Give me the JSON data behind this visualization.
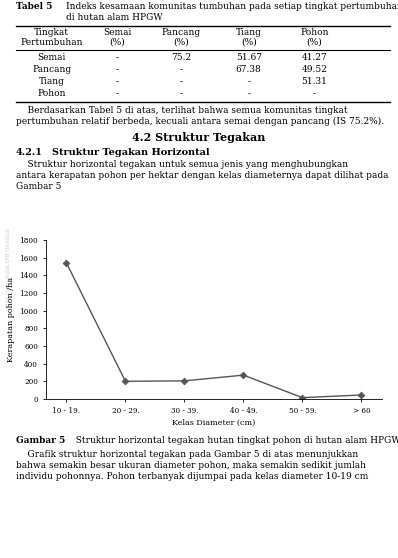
{
  "table_title_bold": "Tabel 5",
  "table_title_text": "Indeks kesamaan komunitas tumbuhan pada setiap tingkat pertumbuhan di hutan alam HPGW",
  "col_headers": [
    "Tingkat\nPertumbuhan",
    "Semai\n(%)",
    "Pancang\n(%)",
    "Tiang\n(%)",
    "Pohon\n(%)"
  ],
  "rows": [
    [
      "Semai",
      "-",
      "75.2",
      "51.67",
      "41.27"
    ],
    [
      "Pancang",
      "-",
      "-",
      "67.38",
      "49.52"
    ],
    [
      "Tiang",
      "-",
      "-",
      "-",
      "51.31"
    ],
    [
      "Pohon",
      "-",
      "-",
      "-",
      "-"
    ]
  ],
  "paragraph1_line1": "    Berdasarkan Tabel 5 di atas, terlihat bahwa semua komunitas tingkat",
  "paragraph1_line2": "pertumbuhan relatif berbeda, kecuali antara semai dengan pancang (IS 75.2%).",
  "section_title": "4.2 Struktur Tegakan",
  "subsection_num": "4.2.1",
  "subsection_title": "Struktur Tegakan Horizontal",
  "paragraph2_line1": "    Struktur horizontal tegakan untuk semua jenis yang menghubungkan",
  "paragraph2_line2": "antara kerapatan pohon per hektar dengan kelas diameternya dapat dilihat pada",
  "paragraph2_line3": "Gambar 5",
  "x_labels": [
    "10 - 19.",
    "20 - 29.",
    "30 - 39.",
    "40 - 49.",
    "50 - 59.",
    "> 60"
  ],
  "y_values": [
    1540,
    200,
    205,
    270,
    15,
    45
  ],
  "xlabel": "Kelas Diameter (cm)",
  "ylabel": "Kerapatan pohon /ha",
  "ylim": [
    0,
    1800
  ],
  "yticks": [
    0,
    200,
    400,
    600,
    800,
    1000,
    1200,
    1400,
    1600,
    1800
  ],
  "fig_caption_bold": "Gambar 5",
  "fig_caption_rest": "  Struktur horizontal tegakan hutan tingkat pohon di hutan alam HPGW",
  "paragraph3_line1": "    Grafik struktur horizontal tegakan pada Gambar 5 di atas menunjukkan",
  "paragraph3_line2": "bahwa semakin besar ukuran diameter pohon, maka semakin sedikit jumlah",
  "paragraph3_line3": "individu pohonnya. Pohon terbanyak dijumpai pada kelas diameter 10-19 cm",
  "line_color": "#555555",
  "marker_color": "#555555",
  "bg_color": "#ffffff",
  "text_color": "#000000",
  "watermark_color": "#cccccc"
}
